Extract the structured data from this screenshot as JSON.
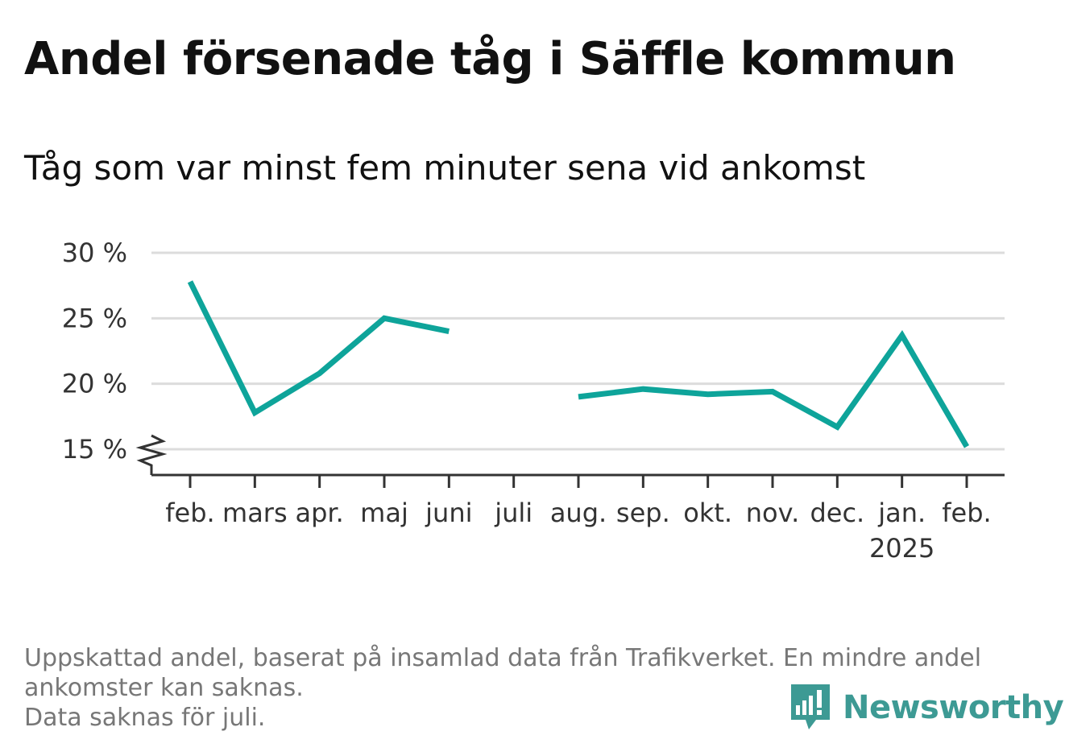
{
  "chart_data": {
    "type": "line",
    "title": "Andel försenade tåg i Säffle kommun",
    "subtitle": "Tåg som var minst fem minuter sena vid ankomst",
    "xlabel": "",
    "ylabel": "",
    "categories": [
      "feb.",
      "mars",
      "apr.",
      "maj",
      "juni",
      "juli",
      "aug.",
      "sep.",
      "okt.",
      "nov.",
      "dec.",
      "jan.",
      "feb."
    ],
    "category_sublabels": [
      "",
      "",
      "",
      "",
      "",
      "",
      "",
      "",
      "",
      "",
      "",
      "2025",
      ""
    ],
    "series": [
      {
        "values": [
          27.8,
          17.8,
          20.8,
          25.0,
          24.0,
          null,
          19.0,
          19.6,
          19.2,
          19.4,
          16.7,
          23.7,
          15.2
        ]
      }
    ],
    "y_ticks": [
      15,
      20,
      25,
      30
    ],
    "y_tick_labels": [
      "15 %",
      "20 %",
      "25 %",
      "30 %"
    ],
    "ylim": [
      13,
      30
    ],
    "y_axis_break": true,
    "grid": true,
    "legend": "none",
    "line_color": "#0ea49a"
  },
  "footnote": {
    "line1": "Uppskattad andel, baserat på insamlad data från Trafikverket. En mindre andel",
    "line2": "ankomster kan saknas.",
    "line3": "Data saknas för juli."
  },
  "logo": {
    "text": "Newsworthy",
    "icon": "newsworthy-logo-icon",
    "color": "#3d9a94"
  }
}
